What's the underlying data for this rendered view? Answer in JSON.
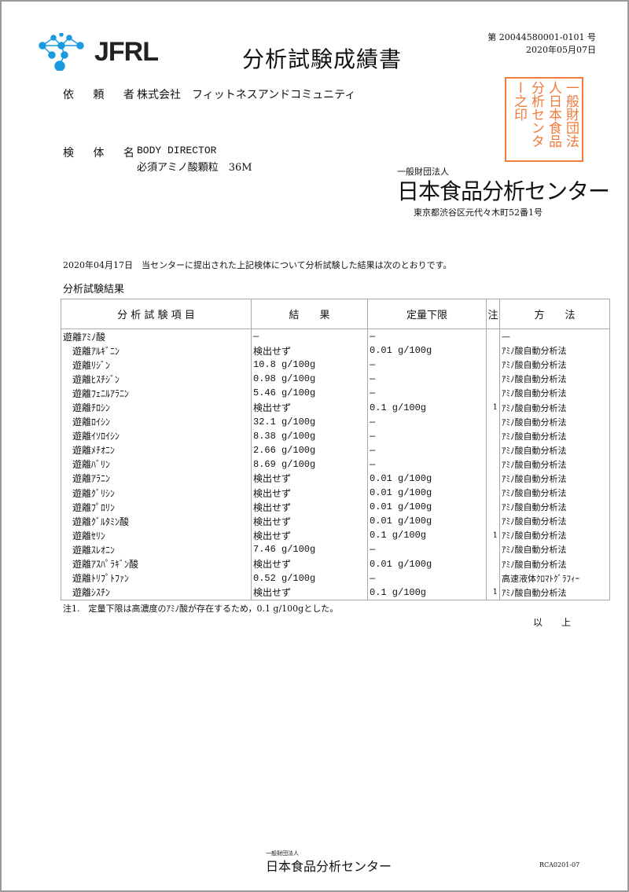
{
  "header": {
    "logo_text": "JFRL",
    "title": "分析試験成績書",
    "doc_number": "第 20044580001-0101 号",
    "date": "2020年05月07日"
  },
  "client": {
    "label": "依 頼 者",
    "value": "株式会社　フィットネスアンドコミュニティ"
  },
  "sample": {
    "label": "検 体 名",
    "line1": "BODY DIRECTOR",
    "line2": "必須アミノ酸顆粒　36M"
  },
  "issuer": {
    "small": "一般財団法人",
    "name": "日本食品分析センター",
    "address": "東京都渋谷区元代々木町52番1号",
    "stamp": "一般財団法人日本食品分析センター之印"
  },
  "intro": "2020年04月17日　当センターに提出された上記検体について分析試験した結果は次のとおりです。",
  "results_heading": "分析試験結果",
  "table": {
    "headers": [
      "分 析 試 験 項 目",
      "結　　果",
      "定量下限",
      "注",
      "方　　法"
    ],
    "rows": [
      [
        "遊離ｱﾐﾉ酸",
        "—",
        "—",
        "",
        "—"
      ],
      [
        "　遊離ｱﾙｷﾞﾆﾝ",
        "検出せず",
        "0.01 g/100g",
        "",
        "ｱﾐﾉ酸自動分析法"
      ],
      [
        "　遊離ﾘｼﾞﾝ",
        "10.8 g/100g",
        "—",
        "",
        "ｱﾐﾉ酸自動分析法"
      ],
      [
        "　遊離ﾋｽﾁｼﾞﾝ",
        "0.98 g/100g",
        "—",
        "",
        "ｱﾐﾉ酸自動分析法"
      ],
      [
        "　遊離ﾌｪﾆﾙｱﾗﾆﾝ",
        "5.46 g/100g",
        "—",
        "",
        "ｱﾐﾉ酸自動分析法"
      ],
      [
        "　遊離ﾁﾛｼﾝ",
        "検出せず",
        "0.1 g/100g",
        "1",
        "ｱﾐﾉ酸自動分析法"
      ],
      [
        "　遊離ﾛｲｼﾝ",
        "32.1 g/100g",
        "—",
        "",
        "ｱﾐﾉ酸自動分析法"
      ],
      [
        "　遊離ｲｿﾛｲｼﾝ",
        "8.38 g/100g",
        "—",
        "",
        "ｱﾐﾉ酸自動分析法"
      ],
      [
        "　遊離ﾒﾁｵﾆﾝ",
        "2.66 g/100g",
        "—",
        "",
        "ｱﾐﾉ酸自動分析法"
      ],
      [
        "　遊離ﾊﾞﾘﾝ",
        "8.69 g/100g",
        "—",
        "",
        "ｱﾐﾉ酸自動分析法"
      ],
      [
        "　遊離ｱﾗﾆﾝ",
        "検出せず",
        "0.01 g/100g",
        "",
        "ｱﾐﾉ酸自動分析法"
      ],
      [
        "　遊離ｸﾞﾘｼﾝ",
        "検出せず",
        "0.01 g/100g",
        "",
        "ｱﾐﾉ酸自動分析法"
      ],
      [
        "　遊離ﾌﾟﾛﾘﾝ",
        "検出せず",
        "0.01 g/100g",
        "",
        "ｱﾐﾉ酸自動分析法"
      ],
      [
        "　遊離ｸﾞﾙﾀﾐﾝ酸",
        "検出せず",
        "0.01 g/100g",
        "",
        "ｱﾐﾉ酸自動分析法"
      ],
      [
        "　遊離ｾﾘﾝ",
        "検出せず",
        "0.1 g/100g",
        "1",
        "ｱﾐﾉ酸自動分析法"
      ],
      [
        "　遊離ｽﾚｵﾆﾝ",
        "7.46 g/100g",
        "—",
        "",
        "ｱﾐﾉ酸自動分析法"
      ],
      [
        "　遊離ｱｽﾊﾟﾗｷﾞﾝ酸",
        "検出せず",
        "0.01 g/100g",
        "",
        "ｱﾐﾉ酸自動分析法"
      ],
      [
        "　遊離ﾄﾘﾌﾟﾄﾌｧﾝ",
        "0.52 g/100g",
        "—",
        "",
        "高速液体ｸﾛﾏﾄｸﾞﾗﾌｨｰ"
      ],
      [
        "　遊離ｼｽﾁﾝ",
        "検出せず",
        "0.1 g/100g",
        "1",
        "ｱﾐﾉ酸自動分析法"
      ]
    ]
  },
  "footnote": "注1.　定量下限は高濃度のｱﾐﾉ酸が存在するため，0.1 g/100gとした。",
  "closing": "以　　上",
  "footer": {
    "small": "一般財団法人",
    "name": "日本食品分析センター",
    "code": "RCA0201-07"
  },
  "colors": {
    "logo": "#1a9be0",
    "stamp": "#f07a3a"
  }
}
